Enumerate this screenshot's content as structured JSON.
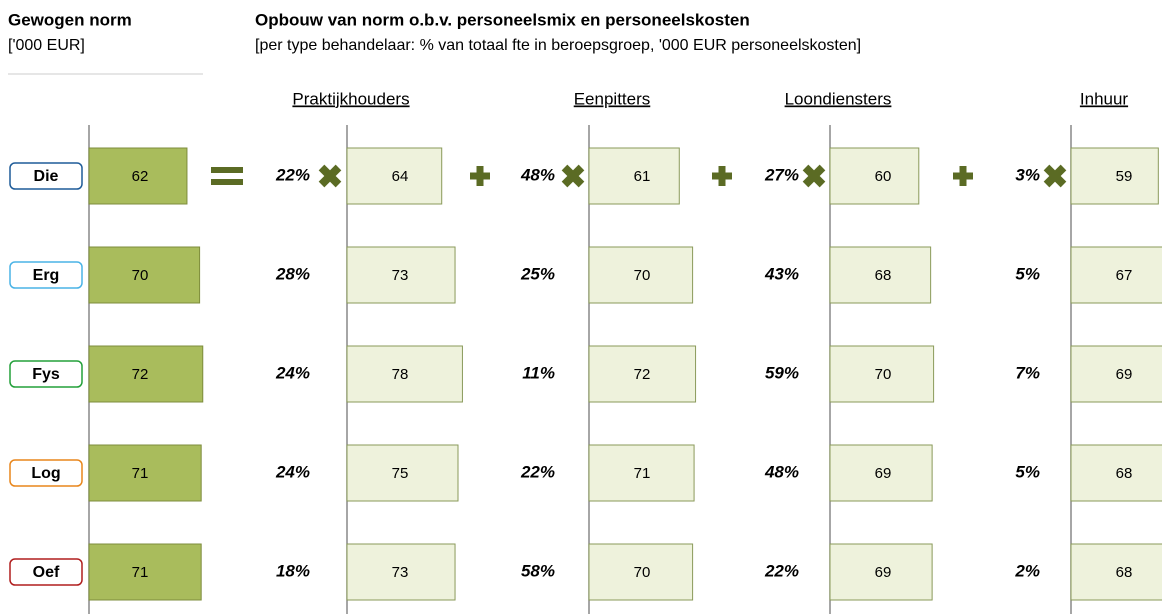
{
  "left_header": {
    "title": "Gewogen norm",
    "subtitle": "['000 EUR]"
  },
  "right_header": {
    "title": "Opbouw van norm o.b.v. personeelsmix en personeelskosten",
    "subtitle": "[per type behandelaar: % van totaal fte in beroepsgroep, '000 EUR personeelskosten]"
  },
  "columns": [
    "Praktijkhouders",
    "Eenpitters",
    "Loondiensters",
    "Inhuur"
  ],
  "rows": [
    {
      "label": "Die",
      "color": "#1f5c99",
      "norm": 62,
      "pct": [
        22,
        48,
        27,
        3
      ],
      "pct_labels": [
        "22%",
        "48%",
        "27%",
        "3%"
      ],
      "cost": [
        64,
        61,
        60,
        59
      ]
    },
    {
      "label": "Erg",
      "color": "#4ab3e6",
      "norm": 70,
      "pct": [
        28,
        25,
        43,
        5
      ],
      "pct_labels": [
        "28%",
        "25%",
        "43%",
        "5%"
      ],
      "cost": [
        73,
        70,
        68,
        67
      ]
    },
    {
      "label": "Fys",
      "color": "#23a03a",
      "norm": 72,
      "pct": [
        24,
        11,
        59,
        7
      ],
      "pct_labels": [
        "24%",
        "11%",
        "59%",
        "7%"
      ],
      "cost": [
        78,
        72,
        70,
        69
      ]
    },
    {
      "label": "Log",
      "color": "#e8861c",
      "norm": 71,
      "pct": [
        24,
        22,
        48,
        5
      ],
      "pct_labels": [
        "24%",
        "22%",
        "48%",
        "5%"
      ],
      "cost": [
        75,
        71,
        69,
        68
      ]
    },
    {
      "label": "Oef",
      "color": "#b01e1e",
      "norm": 71,
      "pct": [
        18,
        58,
        22,
        2
      ],
      "pct_labels": [
        "18%",
        "58%",
        "22%",
        "2%"
      ],
      "cost": [
        73,
        70,
        69,
        68
      ]
    }
  ]
}
